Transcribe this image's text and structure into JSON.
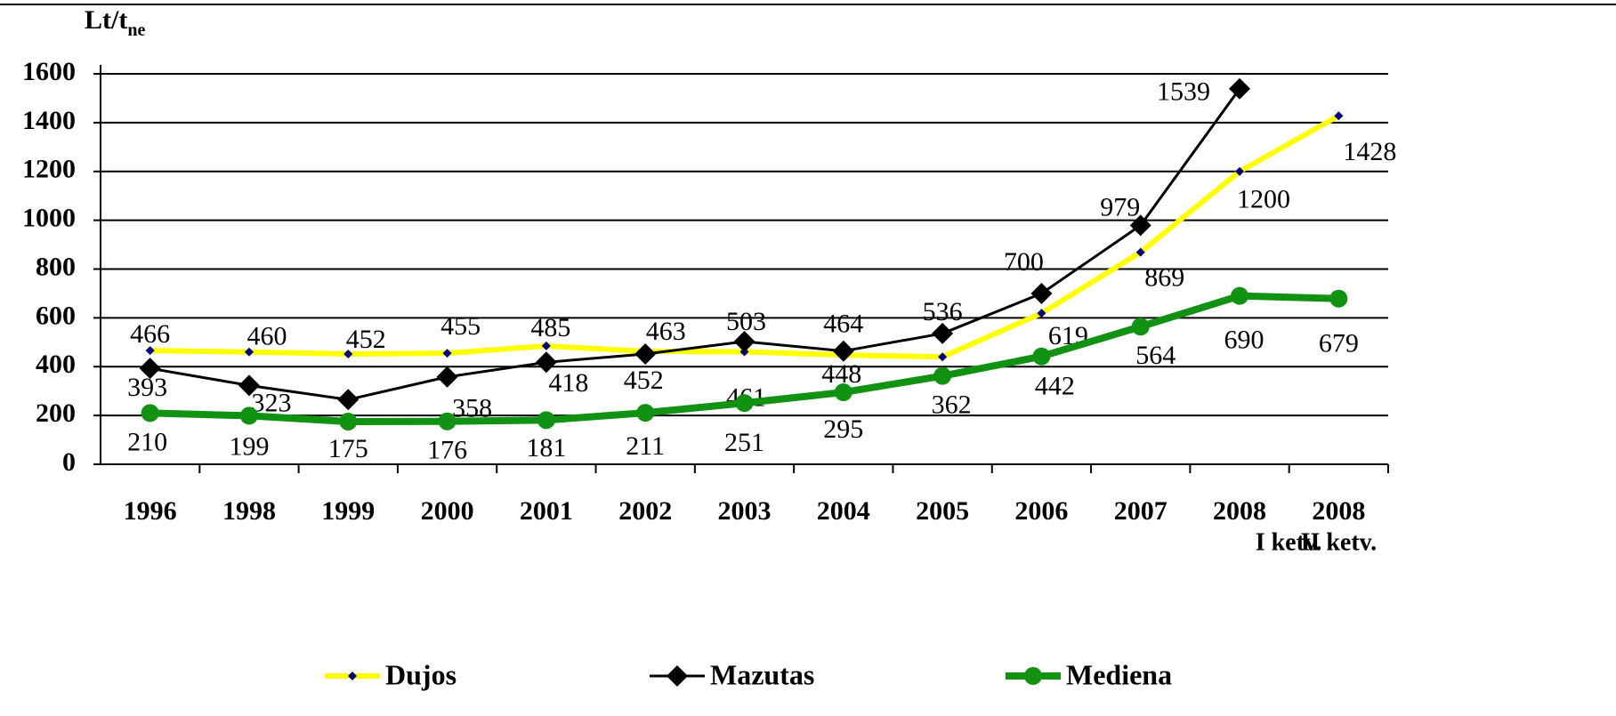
{
  "chart_data": {
    "type": "line",
    "y_label": "Lt/t",
    "y_label_sub": "ne",
    "categories": [
      "1996",
      "1998",
      "1999",
      "2000",
      "2001",
      "2002",
      "2003",
      "2004",
      "2005",
      "2006",
      "2007",
      "2008",
      "2008"
    ],
    "subcategories": [
      null,
      null,
      null,
      null,
      null,
      null,
      null,
      null,
      null,
      null,
      null,
      "I ketv.",
      "II ketv."
    ],
    "ylim": [
      0,
      1600
    ],
    "yticks": [
      0,
      200,
      400,
      600,
      800,
      1000,
      1200,
      1400,
      1600
    ],
    "grid": true,
    "legend": "bottom",
    "series": [
      {
        "name": "Dujos",
        "color": "#ffff00",
        "marker": "diamond",
        "marker_color": "#000080",
        "values": [
          466,
          460,
          452,
          455,
          485,
          463,
          461,
          448,
          440,
          619,
          869,
          1200,
          1428
        ],
        "value_labels": [
          "466",
          "460",
          "452",
          "455",
          "485",
          "463",
          "461",
          "448",
          null,
          "619",
          "869",
          "1200",
          "1428"
        ]
      },
      {
        "name": "Mazutas",
        "color": "#000000",
        "marker": "diamond",
        "marker_color": "#000000",
        "values": [
          393,
          323,
          265,
          358,
          418,
          452,
          503,
          464,
          536,
          700,
          979,
          1539,
          null
        ],
        "value_labels": [
          "393",
          "323",
          null,
          "358",
          "418",
          "452",
          "503",
          "464",
          "536",
          "700",
          "979",
          "1539",
          null
        ]
      },
      {
        "name": "Mediena",
        "color": "#129212",
        "marker": "circle",
        "marker_color": "#129212",
        "values": [
          210,
          199,
          175,
          176,
          181,
          211,
          251,
          295,
          362,
          442,
          564,
          690,
          679
        ],
        "value_labels": [
          "210",
          "199",
          "175",
          "176",
          "181",
          "211",
          "251",
          "295",
          "362",
          "442",
          "564",
          "690",
          "679"
        ]
      }
    ]
  }
}
